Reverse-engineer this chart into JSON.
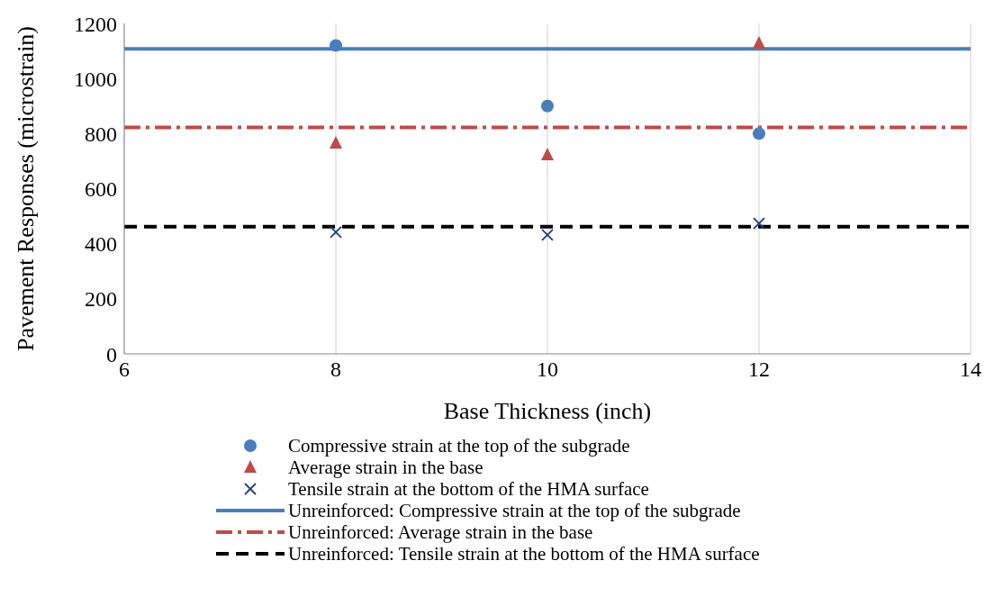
{
  "chart_data": {
    "type": "scatter",
    "xlabel": "Base Thickness (inch)",
    "ylabel": "Pavement Responses (microstrain)",
    "xlim": [
      6,
      14
    ],
    "xticks": [
      6,
      8,
      10,
      12,
      14
    ],
    "ylim": [
      0,
      1200
    ],
    "yticks": [
      0,
      200,
      400,
      600,
      800,
      1000,
      1200
    ],
    "grid": "x",
    "legend": "bottom",
    "series": [
      {
        "name": "Compressive strain at the top of the subgrade",
        "marker": "circle",
        "color": "#4a7ebb",
        "x": [
          8,
          10,
          12
        ],
        "values": [
          1120,
          900,
          800
        ]
      },
      {
        "name": "Average strain in the base",
        "marker": "triangle",
        "color": "#be4b48",
        "x": [
          8,
          10,
          12
        ],
        "values": [
          765,
          723,
          1128
        ]
      },
      {
        "name": "Tensile strain at the bottom of the HMA surface",
        "marker": "cross",
        "color": "#1f3f7a",
        "x": [
          8,
          10,
          12
        ],
        "values": [
          442,
          432,
          474
        ]
      },
      {
        "name": "Unreinforced: Compressive strain at the top of the subgrade",
        "type": "line",
        "marker": "none",
        "line_style": "solid",
        "color": "#4a7ebb",
        "x": [
          6,
          14
        ],
        "values": [
          1108,
          1108
        ]
      },
      {
        "name": "Unreinforced: Average strain in the base",
        "type": "line",
        "marker": "none",
        "line_style": "dashdot",
        "color": "#be4b48",
        "x": [
          6,
          14
        ],
        "values": [
          822,
          822
        ]
      },
      {
        "name": "Unreinforced: Tensile strain at the bottom of the HMA surface",
        "type": "line",
        "marker": "none",
        "line_style": "dashed",
        "color": "#000000",
        "x": [
          6,
          14
        ],
        "values": [
          462,
          462
        ]
      }
    ]
  }
}
